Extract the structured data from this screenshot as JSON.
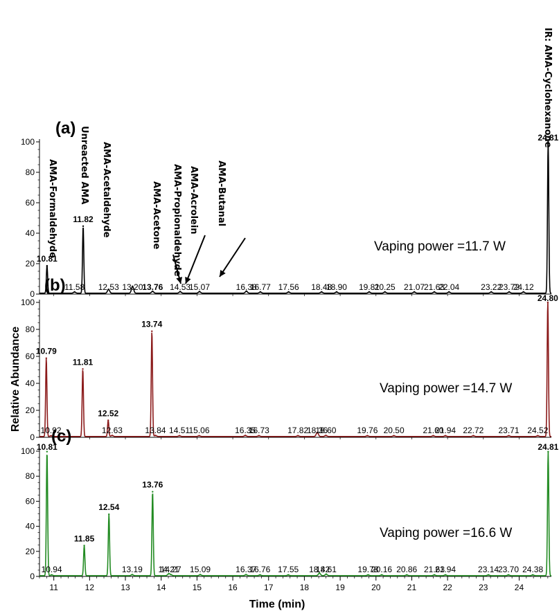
{
  "chart_data": {
    "type": "line",
    "xlabel": "Time (min)",
    "ylabel": "Relative Abundance",
    "xlim": [
      10.6,
      24.9
    ],
    "x_ticks": [
      11,
      12,
      13,
      14,
      15,
      16,
      17,
      18,
      19,
      20,
      21,
      22,
      23,
      24
    ],
    "y_ticks": [
      0,
      20,
      40,
      60,
      80,
      100
    ],
    "panels": [
      {
        "label": "(a)",
        "power": "Vaping power =11.7 W",
        "color": "#000000",
        "ylim": [
          0,
          100
        ],
        "peaks": [
          {
            "rt": 10.81,
            "label": "10.81",
            "height": 18,
            "bold": true
          },
          {
            "rt": 11.58,
            "label": "11.58",
            "height": 0.8,
            "bold": false
          },
          {
            "rt": 11.82,
            "label": "11.82",
            "height": 44,
            "bold": true
          },
          {
            "rt": 12.53,
            "label": "12.53",
            "height": 2.5,
            "bold": false
          },
          {
            "rt": 13.2,
            "label": "13.20",
            "height": 4.5,
            "bold": false
          },
          {
            "rt": 13.76,
            "label": "13.76",
            "height": 1.2,
            "bold": true
          },
          {
            "rt": 14.53,
            "label": "14.53",
            "height": 1,
            "bold": false
          },
          {
            "rt": 15.07,
            "label": "15.07",
            "height": 1,
            "bold": false
          },
          {
            "rt": 16.38,
            "label": "16.38",
            "height": 1.3,
            "bold": false
          },
          {
            "rt": 16.77,
            "label": "16.77",
            "height": 0.8,
            "bold": false
          },
          {
            "rt": 17.56,
            "label": "17.56",
            "height": 0.8,
            "bold": false
          },
          {
            "rt": 18.48,
            "label": "18.48",
            "height": 0.8,
            "bold": false
          },
          {
            "rt": 18.9,
            "label": "18.90",
            "height": 0.8,
            "bold": false
          },
          {
            "rt": 19.81,
            "label": "19.81",
            "height": 0.8,
            "bold": false
          },
          {
            "rt": 20.25,
            "label": "20.25",
            "height": 0.8,
            "bold": false
          },
          {
            "rt": 21.07,
            "label": "21.07",
            "height": 0.8,
            "bold": false
          },
          {
            "rt": 21.63,
            "label": "21.63",
            "height": 0.8,
            "bold": false
          },
          {
            "rt": 22.04,
            "label": "22.04",
            "height": 0.8,
            "bold": false
          },
          {
            "rt": 23.22,
            "label": "23.22",
            "height": 0.8,
            "bold": false
          },
          {
            "rt": 23.72,
            "label": "23.72",
            "height": 0.8,
            "bold": false
          },
          {
            "rt": 24.12,
            "label": "24.12",
            "height": 0.8,
            "bold": false
          },
          {
            "rt": 24.81,
            "label": "24.81",
            "height": 100,
            "bold": true
          }
        ],
        "compounds": [
          {
            "name": "AMA-Formaldehyde",
            "rt": 10.81
          },
          {
            "name": "Unreacted AMA",
            "rt": 11.82
          },
          {
            "name": "AMA-Acetaldehyde",
            "rt": 12.53
          },
          {
            "name": "AMA-Acetone",
            "rt": 13.76
          },
          {
            "name": "AMA-Propionaldehyde",
            "rt": 14.53
          },
          {
            "name": "AMA-Acrolein",
            "rt": 14.6
          },
          {
            "name": "AMA-Butanal",
            "rt": 15.07
          },
          {
            "name": "IR: AMA-Cyclohexanone",
            "rt": 24.81
          }
        ]
      },
      {
        "label": "(b)",
        "power": "Vaping power =14.7 W",
        "color": "#8b1a1a",
        "ylim": [
          0,
          100
        ],
        "peaks": [
          {
            "rt": 10.79,
            "label": "10.79",
            "height": 58,
            "bold": true
          },
          {
            "rt": 10.92,
            "label": "10.92",
            "height": 0.5,
            "bold": false
          },
          {
            "rt": 11.81,
            "label": "11.81",
            "height": 50,
            "bold": true
          },
          {
            "rt": 12.52,
            "label": "12.52",
            "height": 12,
            "bold": true
          },
          {
            "rt": 12.63,
            "label": "12.63",
            "height": 0.8,
            "bold": false
          },
          {
            "rt": 13.74,
            "label": "13.74",
            "height": 78,
            "bold": true
          },
          {
            "rt": 13.84,
            "label": "13.84",
            "height": 0.8,
            "bold": false
          },
          {
            "rt": 14.51,
            "label": "14.51",
            "height": 0.6,
            "bold": false
          },
          {
            "rt": 15.06,
            "label": "15.06",
            "height": 0.6,
            "bold": false
          },
          {
            "rt": 16.35,
            "label": "16.35",
            "height": 0.8,
            "bold": false
          },
          {
            "rt": 16.73,
            "label": "16.73",
            "height": 0.6,
            "bold": false
          },
          {
            "rt": 17.82,
            "label": "17.82",
            "height": 0.6,
            "bold": false
          },
          {
            "rt": 18.36,
            "label": "18.36",
            "height": 3,
            "bold": false
          },
          {
            "rt": 18.6,
            "label": "18.60",
            "height": 0.8,
            "bold": false
          },
          {
            "rt": 19.76,
            "label": "19.76",
            "height": 0.6,
            "bold": false
          },
          {
            "rt": 20.5,
            "label": "20.50",
            "height": 0.6,
            "bold": false
          },
          {
            "rt": 21.6,
            "label": "21.60",
            "height": 0.6,
            "bold": false
          },
          {
            "rt": 21.94,
            "label": "21.94",
            "height": 0.6,
            "bold": false
          },
          {
            "rt": 22.72,
            "label": "22.72",
            "height": 0.6,
            "bold": false
          },
          {
            "rt": 23.71,
            "label": "23.71",
            "height": 0.6,
            "bold": false
          },
          {
            "rt": 24.52,
            "label": "24.52",
            "height": 0.6,
            "bold": false
          },
          {
            "rt": 24.8,
            "label": "24.80",
            "height": 100,
            "bold": true
          }
        ]
      },
      {
        "label": "(c)",
        "power": "Vaping power =16.6 W",
        "color": "#228b22",
        "ylim": [
          0,
          100
        ],
        "peaks": [
          {
            "rt": 10.81,
            "label": "10.81",
            "height": 99,
            "bold": true
          },
          {
            "rt": 10.94,
            "label": "10.94",
            "height": 0.6,
            "bold": false
          },
          {
            "rt": 11.85,
            "label": "11.85",
            "height": 24,
            "bold": true
          },
          {
            "rt": 12.54,
            "label": "12.54",
            "height": 49,
            "bold": true
          },
          {
            "rt": 13.19,
            "label": "13.19",
            "height": 0.8,
            "bold": false
          },
          {
            "rt": 13.76,
            "label": "13.76",
            "height": 67,
            "bold": true
          },
          {
            "rt": 14.21,
            "label": "14.21",
            "height": 1.5,
            "bold": false
          },
          {
            "rt": 14.27,
            "label": "14.27",
            "height": 0.8,
            "bold": false
          },
          {
            "rt": 15.09,
            "label": "15.09",
            "height": 0.8,
            "bold": false
          },
          {
            "rt": 16.37,
            "label": "16.37",
            "height": 0.8,
            "bold": false
          },
          {
            "rt": 16.76,
            "label": "16.76",
            "height": 0.6,
            "bold": false
          },
          {
            "rt": 17.55,
            "label": "17.55",
            "height": 0.6,
            "bold": false
          },
          {
            "rt": 18.42,
            "label": "18.42",
            "height": 2,
            "bold": false
          },
          {
            "rt": 18.61,
            "label": "18.61",
            "height": 1.2,
            "bold": false
          },
          {
            "rt": 19.78,
            "label": "19.78",
            "height": 0.6,
            "bold": false
          },
          {
            "rt": 20.16,
            "label": "20.16",
            "height": 0.6,
            "bold": false
          },
          {
            "rt": 20.86,
            "label": "20.86",
            "height": 0.6,
            "bold": false
          },
          {
            "rt": 21.63,
            "label": "21.63",
            "height": 0.6,
            "bold": false
          },
          {
            "rt": 21.94,
            "label": "21.94",
            "height": 0.6,
            "bold": false
          },
          {
            "rt": 23.14,
            "label": "23.14",
            "height": 0.6,
            "bold": false
          },
          {
            "rt": 23.7,
            "label": "23.70",
            "height": 0.6,
            "bold": false
          },
          {
            "rt": 24.38,
            "label": "24.38",
            "height": 0.6,
            "bold": false
          },
          {
            "rt": 24.81,
            "label": "24.81",
            "height": 99,
            "bold": true
          }
        ]
      }
    ]
  }
}
